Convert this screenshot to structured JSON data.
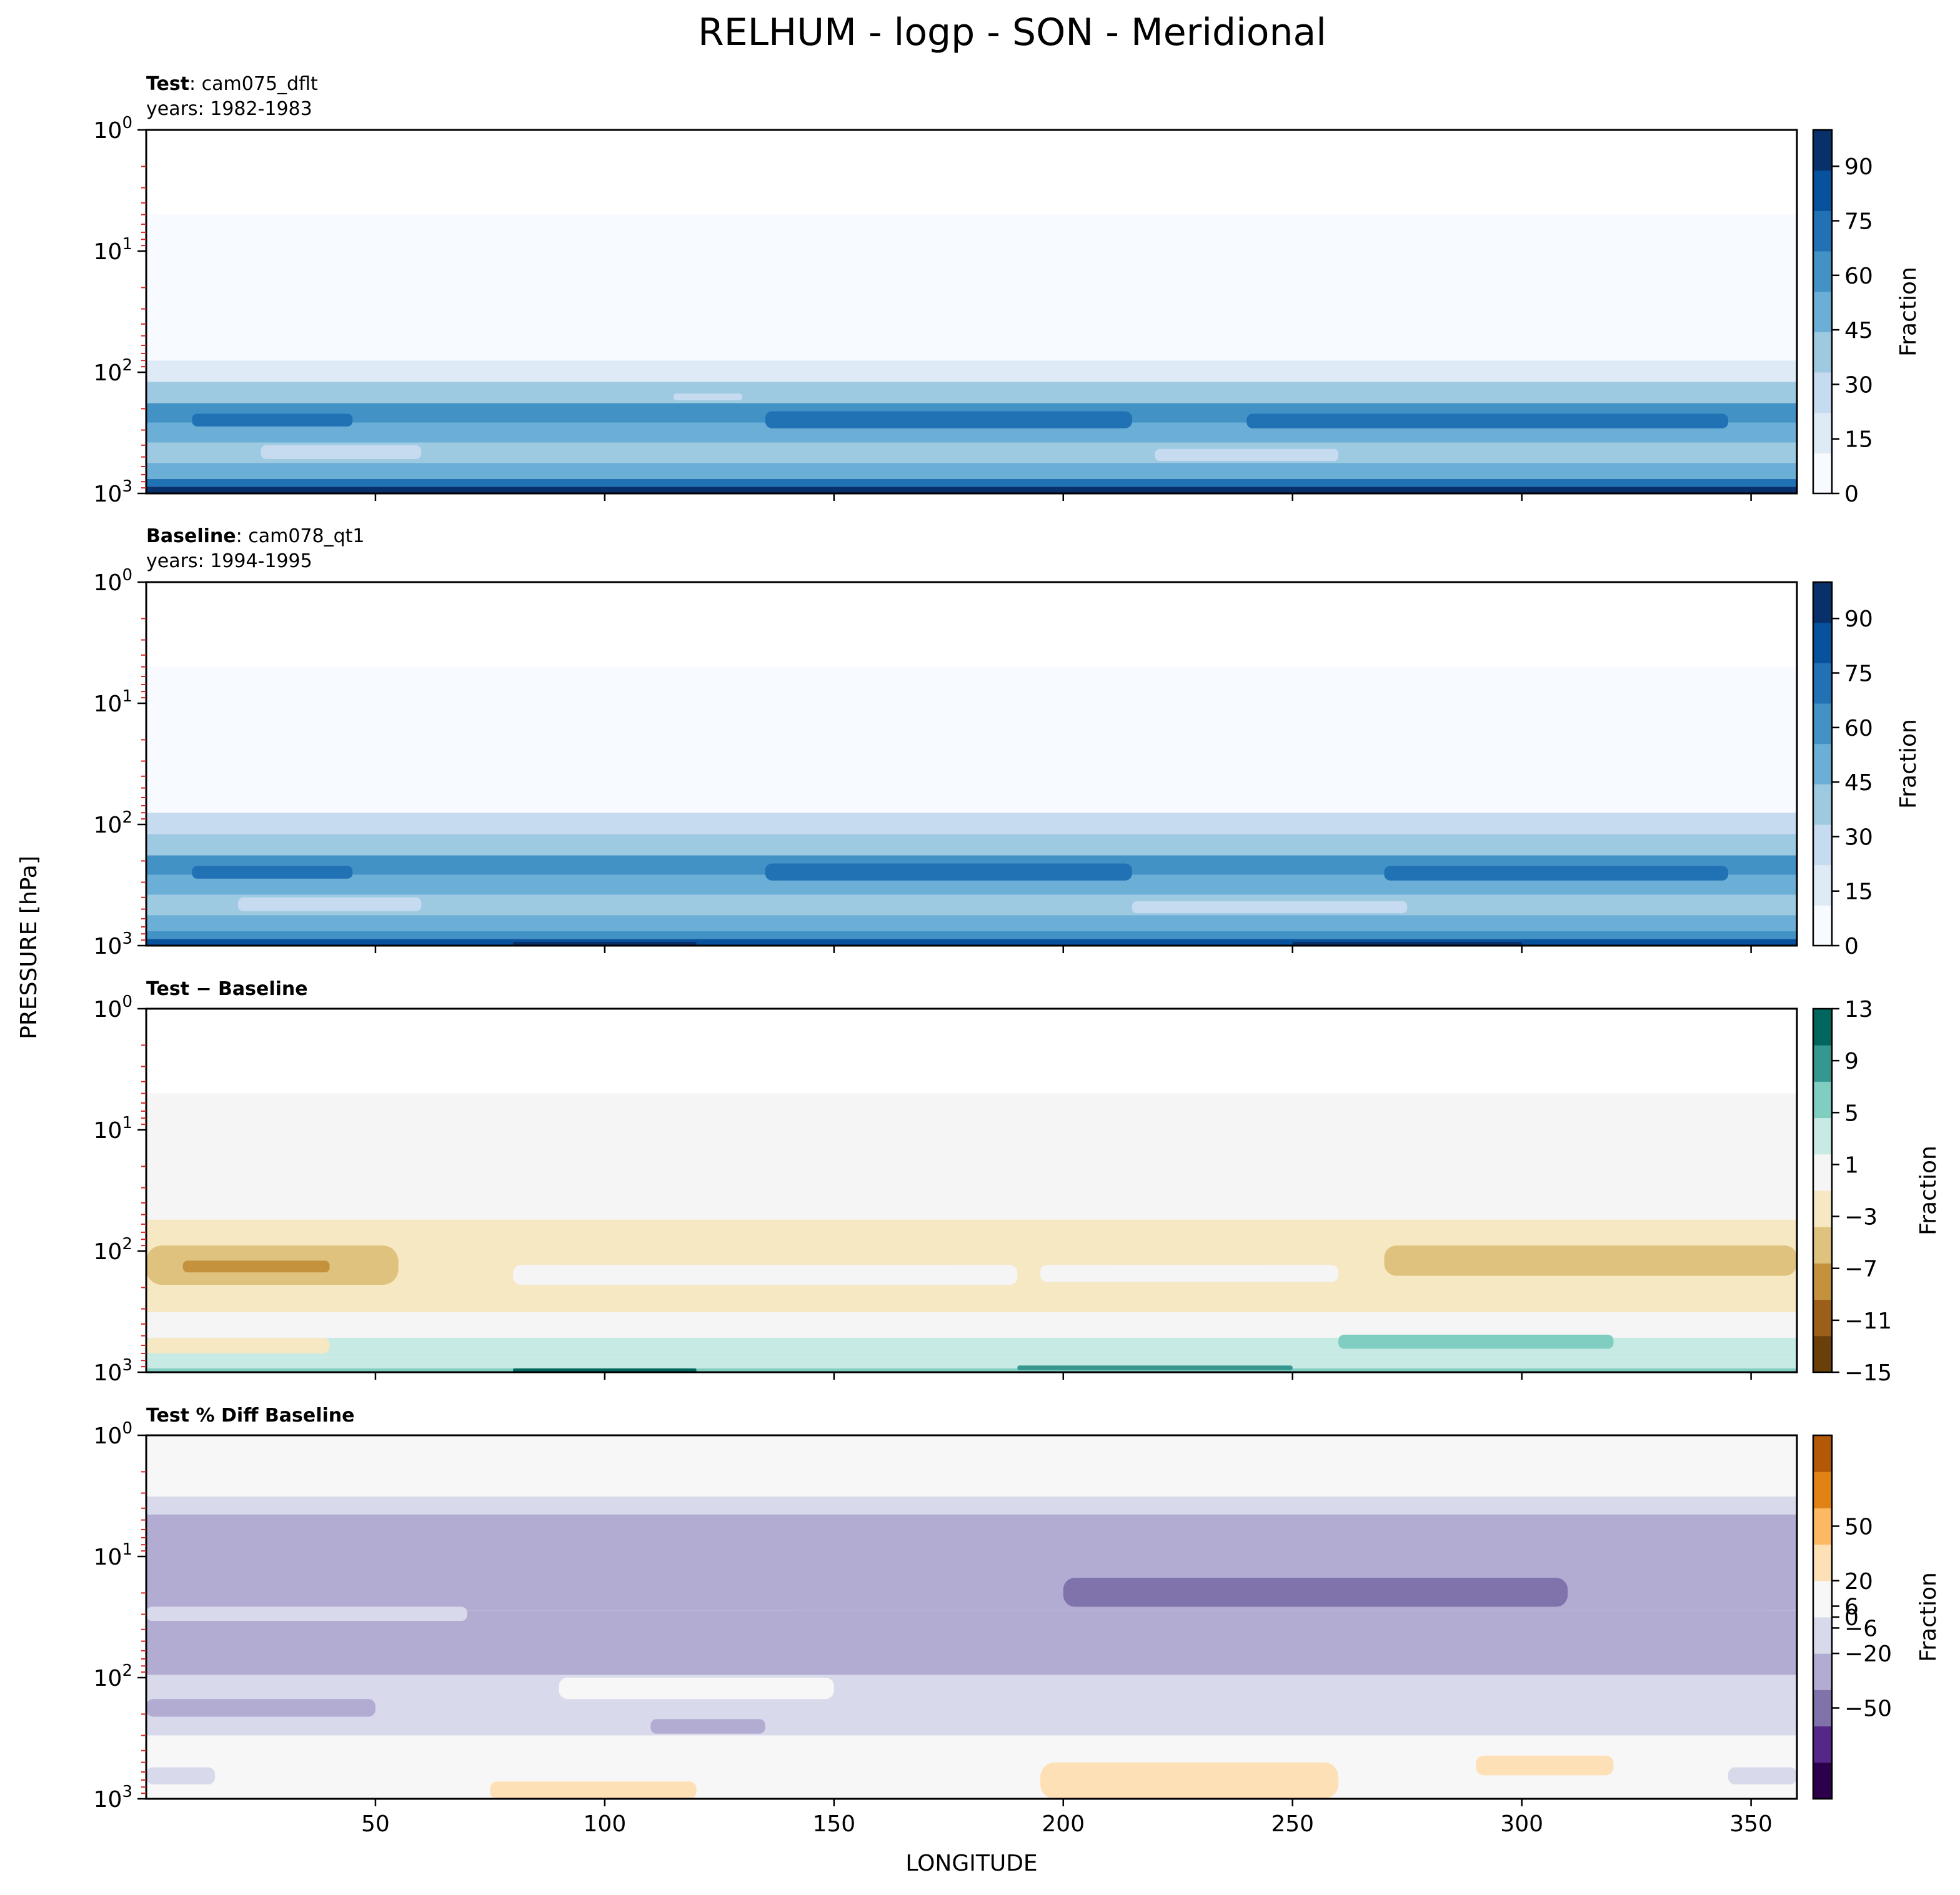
{
  "figure": {
    "suptitle": "RELHUM - logp - SON - Meridional",
    "ylabel": "PRESSURE [hPa]",
    "xlabel": "LONGITUDE"
  },
  "chart_data": [
    {
      "type": "heatmap",
      "title_bold": "Test",
      "title_rest": ": cam075_dflt",
      "subtitle": "years: 1982-1983",
      "xlim": [
        0,
        360
      ],
      "ylim": [
        1000,
        1
      ],
      "yscale": "log",
      "x_ticks": [
        50,
        100,
        150,
        200,
        250,
        300,
        350
      ],
      "x_tick_labels": [
        "50",
        "100",
        "150",
        "200",
        "250",
        "300",
        "350"
      ],
      "show_x_tick_labels": false,
      "y_ticks": [
        1,
        10,
        100,
        1000
      ],
      "y_tick_bases": [
        "10",
        "10",
        "10",
        "10"
      ],
      "y_tick_exps": [
        "0",
        "1",
        "2",
        "3"
      ],
      "colorbar": {
        "label": "Fraction",
        "vmin": 0,
        "vmax": 100,
        "ticks": [
          0,
          15,
          30,
          45,
          60,
          75,
          90
        ],
        "tick_labels": [
          "0",
          "15",
          "30",
          "45",
          "60",
          "75",
          "90"
        ],
        "colors": [
          "#f7fbff",
          "#deebf7",
          "#c6dbef",
          "#9ecae1",
          "#6baed6",
          "#4292c6",
          "#2171b5",
          "#08519c",
          "#08306b"
        ]
      },
      "bands": [
        {
          "p_top": 1,
          "p_bot": 5,
          "value": null
        },
        {
          "p_top": 5,
          "p_bot": 55,
          "value": 2
        },
        {
          "p_top": 55,
          "p_bot": 80,
          "value": 8
        },
        {
          "p_top": 80,
          "p_bot": 120,
          "value": 22
        },
        {
          "p_top": 120,
          "p_bot": 180,
          "value": 40
        },
        {
          "p_top": 180,
          "p_bot": 260,
          "value": 58
        },
        {
          "p_top": 260,
          "p_bot": 380,
          "value": 52
        },
        {
          "p_top": 380,
          "p_bot": 560,
          "value": 36
        },
        {
          "p_top": 560,
          "p_bot": 760,
          "value": 50
        },
        {
          "p_top": 760,
          "p_bot": 880,
          "value": 68
        },
        {
          "p_top": 880,
          "p_bot": 1000,
          "value": 90
        }
      ],
      "patches": [
        {
          "x0": 10,
          "x1": 45,
          "p_top": 220,
          "p_bot": 280,
          "value": 72
        },
        {
          "x0": 135,
          "x1": 215,
          "p_top": 210,
          "p_bot": 290,
          "value": 68
        },
        {
          "x0": 240,
          "x1": 345,
          "p_top": 220,
          "p_bot": 290,
          "value": 70
        },
        {
          "x0": 25,
          "x1": 60,
          "p_top": 400,
          "p_bot": 520,
          "value": 30
        },
        {
          "x0": 220,
          "x1": 260,
          "p_top": 430,
          "p_bot": 540,
          "value": 30
        },
        {
          "x0": 115,
          "x1": 130,
          "p_top": 150,
          "p_bot": 170,
          "value": 30
        },
        {
          "x0": 80,
          "x1": 120,
          "p_top": 920,
          "p_bot": 1000,
          "value": 98
        },
        {
          "x0": 190,
          "x1": 255,
          "p_top": 920,
          "p_bot": 1000,
          "value": 98
        }
      ]
    },
    {
      "type": "heatmap",
      "title_bold": "Baseline",
      "title_rest": ": cam078_qt1",
      "subtitle": "years: 1994-1995",
      "xlim": [
        0,
        360
      ],
      "ylim": [
        1000,
        1
      ],
      "yscale": "log",
      "x_ticks": [
        50,
        100,
        150,
        200,
        250,
        300,
        350
      ],
      "x_tick_labels": [
        "50",
        "100",
        "150",
        "200",
        "250",
        "300",
        "350"
      ],
      "show_x_tick_labels": false,
      "y_ticks": [
        1,
        10,
        100,
        1000
      ],
      "y_tick_bases": [
        "10",
        "10",
        "10",
        "10"
      ],
      "y_tick_exps": [
        "0",
        "1",
        "2",
        "3"
      ],
      "colorbar": {
        "label": "Fraction",
        "vmin": 0,
        "vmax": 100,
        "ticks": [
          0,
          15,
          30,
          45,
          60,
          75,
          90
        ],
        "tick_labels": [
          "0",
          "15",
          "30",
          "45",
          "60",
          "75",
          "90"
        ],
        "colors": [
          "#f7fbff",
          "#deebf7",
          "#c6dbef",
          "#9ecae1",
          "#6baed6",
          "#4292c6",
          "#2171b5",
          "#08519c",
          "#08306b"
        ]
      },
      "bands": [
        {
          "p_top": 1,
          "p_bot": 5,
          "value": null
        },
        {
          "p_top": 5,
          "p_bot": 55,
          "value": 2
        },
        {
          "p_top": 55,
          "p_bot": 80,
          "value": 8
        },
        {
          "p_top": 80,
          "p_bot": 120,
          "value": 24
        },
        {
          "p_top": 120,
          "p_bot": 180,
          "value": 42
        },
        {
          "p_top": 180,
          "p_bot": 260,
          "value": 60
        },
        {
          "p_top": 260,
          "p_bot": 380,
          "value": 54
        },
        {
          "p_top": 380,
          "p_bot": 560,
          "value": 40
        },
        {
          "p_top": 560,
          "p_bot": 760,
          "value": 52
        },
        {
          "p_top": 760,
          "p_bot": 880,
          "value": 66
        },
        {
          "p_top": 880,
          "p_bot": 1000,
          "value": 88
        }
      ],
      "patches": [
        {
          "x0": 10,
          "x1": 45,
          "p_top": 220,
          "p_bot": 280,
          "value": 72
        },
        {
          "x0": 135,
          "x1": 215,
          "p_top": 210,
          "p_bot": 290,
          "value": 70
        },
        {
          "x0": 270,
          "x1": 345,
          "p_top": 220,
          "p_bot": 290,
          "value": 70
        },
        {
          "x0": 20,
          "x1": 60,
          "p_top": 400,
          "p_bot": 520,
          "value": 30
        },
        {
          "x0": 215,
          "x1": 275,
          "p_top": 430,
          "p_bot": 540,
          "value": 28
        },
        {
          "x0": 80,
          "x1": 120,
          "p_top": 930,
          "p_bot": 1000,
          "value": 98
        },
        {
          "x0": 250,
          "x1": 300,
          "p_top": 930,
          "p_bot": 1000,
          "value": 98
        }
      ]
    },
    {
      "type": "heatmap",
      "title_bold": "Test − Baseline",
      "title_rest": "",
      "subtitle": "",
      "xlim": [
        0,
        360
      ],
      "ylim": [
        1000,
        1
      ],
      "yscale": "log",
      "x_ticks": [
        50,
        100,
        150,
        200,
        250,
        300,
        350
      ],
      "x_tick_labels": [
        "50",
        "100",
        "150",
        "200",
        "250",
        "300",
        "350"
      ],
      "show_x_tick_labels": false,
      "y_ticks": [
        1,
        10,
        100,
        1000
      ],
      "y_tick_bases": [
        "10",
        "10",
        "10",
        "10"
      ],
      "y_tick_exps": [
        "0",
        "1",
        "2",
        "3"
      ],
      "colorbar": {
        "label": "Fraction",
        "vmin": -15,
        "vmax": 13,
        "ticks": [
          -15,
          -11,
          -7,
          -3,
          1,
          5,
          9,
          13
        ],
        "tick_labels": [
          "−15",
          "−11",
          "−7",
          "−3",
          "1",
          "5",
          "9",
          "13"
        ],
        "colors": [
          "#6b3f0a",
          "#9c5f1a",
          "#c4913d",
          "#dfc27d",
          "#f6e8c3",
          "#f5f5f5",
          "#c7eae5",
          "#80cdc1",
          "#35978f",
          "#01665e"
        ]
      },
      "bands": [
        {
          "p_top": 1,
          "p_bot": 5,
          "value": null
        },
        {
          "p_top": 5,
          "p_bot": 55,
          "value": -0.5
        },
        {
          "p_top": 55,
          "p_bot": 90,
          "value": -2
        },
        {
          "p_top": 90,
          "p_bot": 190,
          "value": -2.5
        },
        {
          "p_top": 190,
          "p_bot": 320,
          "value": -2
        },
        {
          "p_top": 320,
          "p_bot": 520,
          "value": 0
        },
        {
          "p_top": 520,
          "p_bot": 760,
          "value": 2
        },
        {
          "p_top": 760,
          "p_bot": 930,
          "value": 4
        },
        {
          "p_top": 930,
          "p_bot": 1000,
          "value": 6
        }
      ],
      "patches": [
        {
          "x0": 0,
          "x1": 55,
          "p_top": 90,
          "p_bot": 190,
          "value": -6
        },
        {
          "x0": 8,
          "x1": 40,
          "p_top": 120,
          "p_bot": 150,
          "value": -9
        },
        {
          "x0": 270,
          "x1": 360,
          "p_top": 90,
          "p_bot": 160,
          "value": -6
        },
        {
          "x0": 80,
          "x1": 190,
          "p_top": 130,
          "p_bot": 190,
          "value": 0
        },
        {
          "x0": 195,
          "x1": 260,
          "p_top": 130,
          "p_bot": 180,
          "value": 0
        },
        {
          "x0": 260,
          "x1": 320,
          "p_top": 490,
          "p_bot": 640,
          "value": 7
        },
        {
          "x0": 80,
          "x1": 120,
          "p_top": 930,
          "p_bot": 1000,
          "value": 11
        },
        {
          "x0": 190,
          "x1": 250,
          "p_top": 880,
          "p_bot": 960,
          "value": 8
        },
        {
          "x0": 0,
          "x1": 40,
          "p_top": 520,
          "p_bot": 700,
          "value": -2
        }
      ]
    },
    {
      "type": "heatmap",
      "title_bold": "Test % Diff Baseline",
      "title_rest": "",
      "subtitle": "",
      "xlim": [
        0,
        360
      ],
      "ylim": [
        1000,
        1
      ],
      "yscale": "log",
      "x_ticks": [
        50,
        100,
        150,
        200,
        250,
        300,
        350
      ],
      "x_tick_labels": [
        "50",
        "100",
        "150",
        "200",
        "250",
        "300",
        "350"
      ],
      "show_x_tick_labels": true,
      "y_ticks": [
        1,
        10,
        100,
        1000
      ],
      "y_tick_bases": [
        "10",
        "10",
        "10",
        "10"
      ],
      "y_tick_exps": [
        "0",
        "1",
        "2",
        "3"
      ],
      "colorbar": {
        "label": "Fraction",
        "vmin": -100,
        "vmax": 100,
        "ticks": [
          -50,
          -20,
          -6,
          0,
          6,
          20,
          50
        ],
        "tick_labels": [
          "−50",
          "−20",
          "−6",
          "0",
          "6",
          "20",
          "50"
        ],
        "colors": [
          "#2d004b",
          "#542788",
          "#8073ac",
          "#b2abd2",
          "#d8daeb",
          "#f7f7f7",
          "#fee0b6",
          "#fdb863",
          "#e08214",
          "#b35806"
        ]
      },
      "bands": [
        {
          "p_top": 1,
          "p_bot": 3.2,
          "value": 0
        },
        {
          "p_top": 3.2,
          "p_bot": 4.5,
          "value": -6
        },
        {
          "p_top": 4.5,
          "p_bot": 28,
          "value": -32
        },
        {
          "p_top": 28,
          "p_bot": 95,
          "value": -26
        },
        {
          "p_top": 95,
          "p_bot": 150,
          "value": -14
        },
        {
          "p_top": 150,
          "p_bot": 300,
          "value": -6
        },
        {
          "p_top": 300,
          "p_bot": 500,
          "value": 2
        },
        {
          "p_top": 500,
          "p_bot": 800,
          "value": 10
        },
        {
          "p_top": 800,
          "p_bot": 1000,
          "value": 18
        }
      ],
      "patches": [
        {
          "x0": 135,
          "x1": 360,
          "p_top": 7,
          "p_bot": 28,
          "value": -40
        },
        {
          "x0": 200,
          "x1": 310,
          "p_top": 15,
          "p_bot": 26,
          "value": -56
        },
        {
          "x0": 0,
          "x1": 70,
          "p_top": 26,
          "p_bot": 34,
          "value": -6
        },
        {
          "x0": 0,
          "x1": 50,
          "p_top": 150,
          "p_bot": 210,
          "value": -22
        },
        {
          "x0": 110,
          "x1": 135,
          "p_top": 220,
          "p_bot": 290,
          "value": -22
        },
        {
          "x0": 90,
          "x1": 150,
          "p_top": 100,
          "p_bot": 150,
          "value": 1
        },
        {
          "x0": 195,
          "x1": 260,
          "p_top": 500,
          "p_bot": 1000,
          "value": 38
        },
        {
          "x0": 290,
          "x1": 320,
          "p_top": 440,
          "p_bot": 640,
          "value": 38
        },
        {
          "x0": 75,
          "x1": 120,
          "p_top": 720,
          "p_bot": 1000,
          "value": 36
        },
        {
          "x0": 0,
          "x1": 15,
          "p_top": 550,
          "p_bot": 760,
          "value": -8
        },
        {
          "x0": 345,
          "x1": 360,
          "p_top": 550,
          "p_bot": 760,
          "value": -8
        }
      ]
    }
  ]
}
